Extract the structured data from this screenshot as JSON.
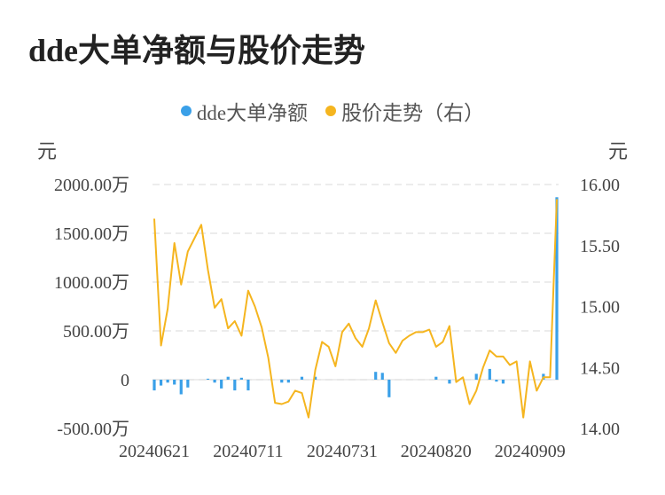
{
  "title": "dde大单净额与股价走势",
  "legend": [
    {
      "label": "dde大单净额",
      "color": "#3aa0e8"
    },
    {
      "label": "股价走势（右）",
      "color": "#f5b51f"
    }
  ],
  "chart_data": {
    "type": "bar+line",
    "y_left_unit": "元",
    "y_right_unit": "元",
    "y_left_ticks": [
      "2000.00万",
      "1500.00万",
      "1000.00万",
      "500.00万",
      "0",
      "-500.00万"
    ],
    "y_right_ticks": [
      "16.00",
      "15.50",
      "15.00",
      "14.50",
      "14.00"
    ],
    "y_left_lim": [
      -500,
      2000
    ],
    "y_right_lim": [
      14.0,
      16.0
    ],
    "x_ticks": [
      {
        "label": "20240621",
        "index": 0
      },
      {
        "label": "20240711",
        "index": 14
      },
      {
        "label": "20240731",
        "index": 28
      },
      {
        "label": "20240820",
        "index": 42
      },
      {
        "label": "20240909",
        "index": 56
      }
    ],
    "series": [
      {
        "name": "dde大单净额",
        "type": "bar",
        "unit": "万",
        "values": [
          -110,
          -60,
          -30,
          -50,
          -150,
          -80,
          0,
          0,
          10,
          -30,
          -90,
          30,
          -110,
          20,
          -110,
          0,
          0,
          0,
          0,
          -30,
          -30,
          0,
          30,
          0,
          30,
          0,
          0,
          0,
          0,
          0,
          0,
          0,
          0,
          80,
          70,
          -180,
          0,
          0,
          0,
          0,
          0,
          0,
          30,
          0,
          -40,
          0,
          0,
          0,
          60,
          0,
          110,
          -20,
          -40,
          0,
          0,
          0,
          0,
          0,
          60,
          0,
          1870
        ]
      },
      {
        "name": "股价走势（右）",
        "type": "line",
        "values": [
          15.72,
          14.68,
          14.98,
          15.52,
          15.18,
          15.45,
          15.56,
          15.67,
          15.3,
          14.99,
          15.06,
          14.82,
          14.88,
          14.76,
          15.13,
          15.0,
          14.83,
          14.58,
          14.21,
          14.2,
          14.22,
          14.31,
          14.29,
          14.09,
          14.48,
          14.71,
          14.67,
          14.51,
          14.79,
          14.86,
          14.74,
          14.67,
          14.82,
          15.05,
          14.87,
          14.7,
          14.62,
          14.72,
          14.76,
          14.79,
          14.79,
          14.81,
          14.67,
          14.71,
          14.84,
          14.38,
          14.42,
          14.2,
          14.31,
          14.5,
          14.64,
          14.59,
          14.59,
          14.52,
          14.55,
          14.09,
          14.55,
          14.31,
          14.42,
          14.42,
          15.88
        ]
      }
    ]
  }
}
